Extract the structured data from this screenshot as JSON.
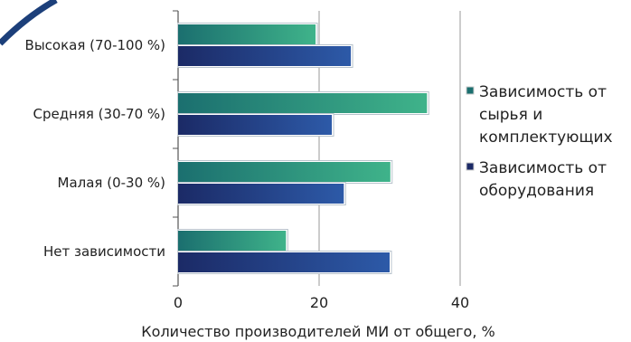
{
  "chart_data": {
    "type": "bar",
    "orientation": "horizontal",
    "categories": [
      "Высокая (70-100 %)",
      "Средняя (30-70 %)",
      "Малая (0-30 %)",
      "Нет зависимости"
    ],
    "series": [
      {
        "name": "Зависимость от сырья и комплектующих",
        "legend_lines": [
          "Зависимость от",
          "сырья и",
          "комплектующих"
        ],
        "values": [
          19.5,
          35.3,
          30.1,
          15.3
        ],
        "color_start": "#1b6f6f",
        "color_end": "#3fb38a"
      },
      {
        "name": "Зависимость от оборудования",
        "legend_lines": [
          "Зависимость от",
          "оборудования"
        ],
        "values": [
          24.5,
          21.8,
          23.5,
          30.0
        ],
        "color_start": "#1b2a66",
        "color_end": "#2d5aa8"
      }
    ],
    "xlim": [
      0,
      40
    ],
    "xticks": [
      0,
      20,
      40
    ],
    "xlabel": "Количество производителей МИ от общего, %",
    "ylabel": "",
    "title": "",
    "grid": false,
    "legend_position": "right"
  }
}
